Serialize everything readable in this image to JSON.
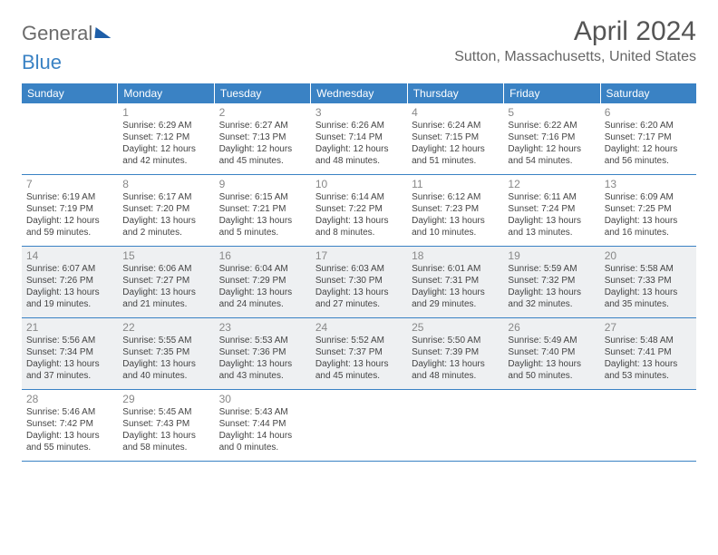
{
  "brand": {
    "word1": "General",
    "word2": "Blue"
  },
  "title": "April 2024",
  "location": "Sutton, Massachusetts, United States",
  "day_names": [
    "Sunday",
    "Monday",
    "Tuesday",
    "Wednesday",
    "Thursday",
    "Friday",
    "Saturday"
  ],
  "header_bg": "#3a82c4",
  "header_fg": "#ffffff",
  "shade_bg": "#eef0f2",
  "weeks": [
    [
      {
        "n": "",
        "sr": "",
        "ss": "",
        "dl": ""
      },
      {
        "n": "1",
        "sr": "Sunrise: 6:29 AM",
        "ss": "Sunset: 7:12 PM",
        "dl": "Daylight: 12 hours and 42 minutes."
      },
      {
        "n": "2",
        "sr": "Sunrise: 6:27 AM",
        "ss": "Sunset: 7:13 PM",
        "dl": "Daylight: 12 hours and 45 minutes."
      },
      {
        "n": "3",
        "sr": "Sunrise: 6:26 AM",
        "ss": "Sunset: 7:14 PM",
        "dl": "Daylight: 12 hours and 48 minutes."
      },
      {
        "n": "4",
        "sr": "Sunrise: 6:24 AM",
        "ss": "Sunset: 7:15 PM",
        "dl": "Daylight: 12 hours and 51 minutes."
      },
      {
        "n": "5",
        "sr": "Sunrise: 6:22 AM",
        "ss": "Sunset: 7:16 PM",
        "dl": "Daylight: 12 hours and 54 minutes."
      },
      {
        "n": "6",
        "sr": "Sunrise: 6:20 AM",
        "ss": "Sunset: 7:17 PM",
        "dl": "Daylight: 12 hours and 56 minutes."
      }
    ],
    [
      {
        "n": "7",
        "sr": "Sunrise: 6:19 AM",
        "ss": "Sunset: 7:19 PM",
        "dl": "Daylight: 12 hours and 59 minutes."
      },
      {
        "n": "8",
        "sr": "Sunrise: 6:17 AM",
        "ss": "Sunset: 7:20 PM",
        "dl": "Daylight: 13 hours and 2 minutes."
      },
      {
        "n": "9",
        "sr": "Sunrise: 6:15 AM",
        "ss": "Sunset: 7:21 PM",
        "dl": "Daylight: 13 hours and 5 minutes."
      },
      {
        "n": "10",
        "sr": "Sunrise: 6:14 AM",
        "ss": "Sunset: 7:22 PM",
        "dl": "Daylight: 13 hours and 8 minutes."
      },
      {
        "n": "11",
        "sr": "Sunrise: 6:12 AM",
        "ss": "Sunset: 7:23 PM",
        "dl": "Daylight: 13 hours and 10 minutes."
      },
      {
        "n": "12",
        "sr": "Sunrise: 6:11 AM",
        "ss": "Sunset: 7:24 PM",
        "dl": "Daylight: 13 hours and 13 minutes."
      },
      {
        "n": "13",
        "sr": "Sunrise: 6:09 AM",
        "ss": "Sunset: 7:25 PM",
        "dl": "Daylight: 13 hours and 16 minutes."
      }
    ],
    [
      {
        "n": "14",
        "sr": "Sunrise: 6:07 AM",
        "ss": "Sunset: 7:26 PM",
        "dl": "Daylight: 13 hours and 19 minutes."
      },
      {
        "n": "15",
        "sr": "Sunrise: 6:06 AM",
        "ss": "Sunset: 7:27 PM",
        "dl": "Daylight: 13 hours and 21 minutes."
      },
      {
        "n": "16",
        "sr": "Sunrise: 6:04 AM",
        "ss": "Sunset: 7:29 PM",
        "dl": "Daylight: 13 hours and 24 minutes."
      },
      {
        "n": "17",
        "sr": "Sunrise: 6:03 AM",
        "ss": "Sunset: 7:30 PM",
        "dl": "Daylight: 13 hours and 27 minutes."
      },
      {
        "n": "18",
        "sr": "Sunrise: 6:01 AM",
        "ss": "Sunset: 7:31 PM",
        "dl": "Daylight: 13 hours and 29 minutes."
      },
      {
        "n": "19",
        "sr": "Sunrise: 5:59 AM",
        "ss": "Sunset: 7:32 PM",
        "dl": "Daylight: 13 hours and 32 minutes."
      },
      {
        "n": "20",
        "sr": "Sunrise: 5:58 AM",
        "ss": "Sunset: 7:33 PM",
        "dl": "Daylight: 13 hours and 35 minutes."
      }
    ],
    [
      {
        "n": "21",
        "sr": "Sunrise: 5:56 AM",
        "ss": "Sunset: 7:34 PM",
        "dl": "Daylight: 13 hours and 37 minutes."
      },
      {
        "n": "22",
        "sr": "Sunrise: 5:55 AM",
        "ss": "Sunset: 7:35 PM",
        "dl": "Daylight: 13 hours and 40 minutes."
      },
      {
        "n": "23",
        "sr": "Sunrise: 5:53 AM",
        "ss": "Sunset: 7:36 PM",
        "dl": "Daylight: 13 hours and 43 minutes."
      },
      {
        "n": "24",
        "sr": "Sunrise: 5:52 AM",
        "ss": "Sunset: 7:37 PM",
        "dl": "Daylight: 13 hours and 45 minutes."
      },
      {
        "n": "25",
        "sr": "Sunrise: 5:50 AM",
        "ss": "Sunset: 7:39 PM",
        "dl": "Daylight: 13 hours and 48 minutes."
      },
      {
        "n": "26",
        "sr": "Sunrise: 5:49 AM",
        "ss": "Sunset: 7:40 PM",
        "dl": "Daylight: 13 hours and 50 minutes."
      },
      {
        "n": "27",
        "sr": "Sunrise: 5:48 AM",
        "ss": "Sunset: 7:41 PM",
        "dl": "Daylight: 13 hours and 53 minutes."
      }
    ],
    [
      {
        "n": "28",
        "sr": "Sunrise: 5:46 AM",
        "ss": "Sunset: 7:42 PM",
        "dl": "Daylight: 13 hours and 55 minutes."
      },
      {
        "n": "29",
        "sr": "Sunrise: 5:45 AM",
        "ss": "Sunset: 7:43 PM",
        "dl": "Daylight: 13 hours and 58 minutes."
      },
      {
        "n": "30",
        "sr": "Sunrise: 5:43 AM",
        "ss": "Sunset: 7:44 PM",
        "dl": "Daylight: 14 hours and 0 minutes."
      },
      {
        "n": "",
        "sr": "",
        "ss": "",
        "dl": ""
      },
      {
        "n": "",
        "sr": "",
        "ss": "",
        "dl": ""
      },
      {
        "n": "",
        "sr": "",
        "ss": "",
        "dl": ""
      },
      {
        "n": "",
        "sr": "",
        "ss": "",
        "dl": ""
      }
    ]
  ],
  "shaded_weeks": [
    2,
    3
  ]
}
